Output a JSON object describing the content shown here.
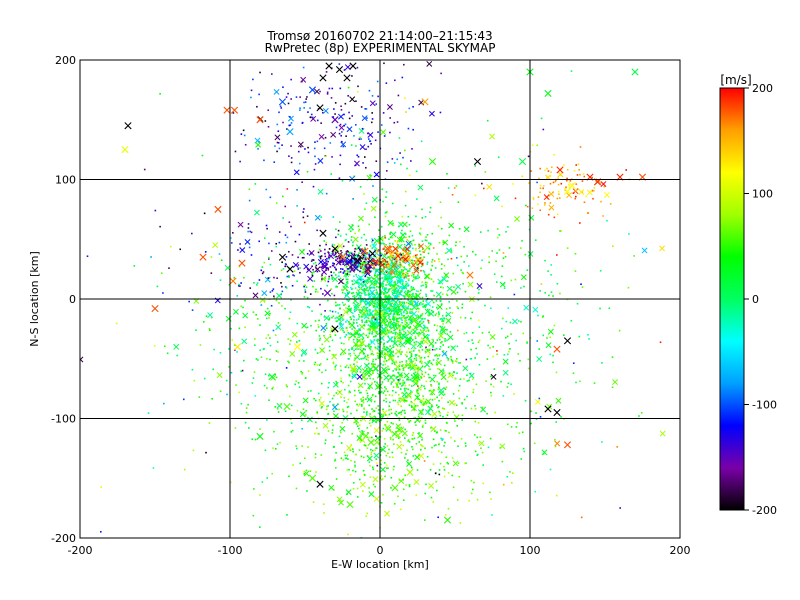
{
  "chart_data": {
    "type": "scatter",
    "title": "Tromsø 20160702 21:14:00–21:15:43",
    "subtitle": "RwPretec (8p) EXPERIMENTAL SKYMAP",
    "xlabel": "E-W location [km]",
    "ylabel": "N-S location [km]",
    "xlim": [
      -200,
      200
    ],
    "ylim": [
      -200,
      200
    ],
    "xticks": [
      -200,
      -100,
      0,
      100,
      200
    ],
    "yticks": [
      -200,
      -100,
      0,
      100,
      200
    ],
    "grid": true,
    "colorbar": {
      "label": "[m/s]",
      "range": [
        -200,
        200
      ],
      "ticks": [
        200,
        100,
        0,
        -100,
        -200
      ],
      "colors": [
        "#000000",
        "#7a00a8",
        "#0000ff",
        "#00a0ff",
        "#00ffff",
        "#00ff60",
        "#00ff00",
        "#a0ff00",
        "#ffff00",
        "#ffa000",
        "#ff0000"
      ]
    },
    "x_markers": [
      {
        "x": -168,
        "y": 145,
        "v": -200
      },
      {
        "x": -170,
        "y": 125,
        "v": 110
      },
      {
        "x": -102,
        "y": 158,
        "v": 180
      },
      {
        "x": -97,
        "y": 158,
        "v": 180
      },
      {
        "x": -80,
        "y": 150,
        "v": 180
      },
      {
        "x": -65,
        "y": 165,
        "v": -100
      },
      {
        "x": -45,
        "y": 175,
        "v": -100
      },
      {
        "x": -38,
        "y": 185,
        "v": -200
      },
      {
        "x": -34,
        "y": 195,
        "v": -200
      },
      {
        "x": -27,
        "y": 192,
        "v": -200
      },
      {
        "x": -22,
        "y": 185,
        "v": -200
      },
      {
        "x": -18,
        "y": 195,
        "v": -200
      },
      {
        "x": -40,
        "y": 160,
        "v": -200
      },
      {
        "x": -30,
        "y": 150,
        "v": -150
      },
      {
        "x": -60,
        "y": 140,
        "v": -80
      },
      {
        "x": 30,
        "y": 165,
        "v": 160
      },
      {
        "x": 65,
        "y": 115,
        "v": -200
      },
      {
        "x": 35,
        "y": 115,
        "v": 50
      },
      {
        "x": 100,
        "y": 190,
        "v": 30
      },
      {
        "x": 112,
        "y": 172,
        "v": 30
      },
      {
        "x": 170,
        "y": 190,
        "v": 10
      },
      {
        "x": 95,
        "y": 115,
        "v": 10
      },
      {
        "x": 120,
        "y": 108,
        "v": 190
      },
      {
        "x": 140,
        "y": 102,
        "v": 190
      },
      {
        "x": 145,
        "y": 98,
        "v": 190
      },
      {
        "x": 160,
        "y": 102,
        "v": 190
      },
      {
        "x": 175,
        "y": 102,
        "v": 180
      },
      {
        "x": 128,
        "y": 95,
        "v": 120
      },
      {
        "x": 125,
        "y": 90,
        "v": 120
      },
      {
        "x": -108,
        "y": 75,
        "v": 180
      },
      {
        "x": -118,
        "y": 35,
        "v": 180
      },
      {
        "x": -92,
        "y": 30,
        "v": 180
      },
      {
        "x": -65,
        "y": 35,
        "v": -200
      },
      {
        "x": -38,
        "y": 55,
        "v": -200
      },
      {
        "x": -30,
        "y": 42,
        "v": -200
      },
      {
        "x": -10,
        "y": 40,
        "v": 170
      },
      {
        "x": -5,
        "y": 38,
        "v": -200
      },
      {
        "x": 5,
        "y": 42,
        "v": 180
      },
      {
        "x": 12,
        "y": 36,
        "v": 190
      },
      {
        "x": 18,
        "y": 38,
        "v": 160
      },
      {
        "x": -25,
        "y": 35,
        "v": 170
      },
      {
        "x": -15,
        "y": 32,
        "v": -200
      },
      {
        "x": -8,
        "y": 25,
        "v": -170
      },
      {
        "x": -150,
        "y": -8,
        "v": 180
      },
      {
        "x": -98,
        "y": 15,
        "v": 170
      },
      {
        "x": -60,
        "y": 25,
        "v": -200
      },
      {
        "x": -30,
        "y": -25,
        "v": -200
      },
      {
        "x": -35,
        "y": 5,
        "v": -150
      },
      {
        "x": 60,
        "y": 20,
        "v": 170
      },
      {
        "x": 125,
        "y": -35,
        "v": -200
      },
      {
        "x": 118,
        "y": -42,
        "v": 180
      },
      {
        "x": 112,
        "y": -92,
        "v": -200
      },
      {
        "x": 118,
        "y": -95,
        "v": -200
      },
      {
        "x": 125,
        "y": -122,
        "v": 180
      },
      {
        "x": -55,
        "y": -40,
        "v": 120
      },
      {
        "x": -62,
        "y": -90,
        "v": 60
      },
      {
        "x": -80,
        "y": -115,
        "v": 40
      },
      {
        "x": -72,
        "y": -65,
        "v": 20
      },
      {
        "x": -45,
        "y": -150,
        "v": 60
      },
      {
        "x": -40,
        "y": -155,
        "v": -200
      },
      {
        "x": -20,
        "y": -172,
        "v": 60
      },
      {
        "x": 10,
        "y": -158,
        "v": 60
      },
      {
        "x": 20,
        "y": -145,
        "v": 80
      },
      {
        "x": 45,
        "y": -185,
        "v": 50
      },
      {
        "x": -95,
        "y": -40,
        "v": 130
      },
      {
        "x": -6,
        "y": -120,
        "v": 60
      }
    ],
    "dot_clusters": [
      {
        "cx": 8,
        "cy": -25,
        "sx": 22,
        "sy": 45,
        "n": 1500,
        "vmin": -10,
        "vmax": 90
      },
      {
        "cx": 2,
        "cy": 5,
        "sx": 14,
        "sy": 20,
        "n": 700,
        "vmin": -60,
        "vmax": 40
      },
      {
        "cx": 10,
        "cy": -110,
        "sx": 38,
        "sy": 40,
        "n": 550,
        "vmin": 20,
        "vmax": 100
      },
      {
        "cx": -22,
        "cy": 32,
        "sx": 15,
        "sy": 6,
        "n": 220,
        "vmin": -200,
        "vmax": -120
      },
      {
        "cx": 10,
        "cy": 33,
        "sx": 12,
        "sy": 6,
        "n": 160,
        "vmin": 120,
        "vmax": 200
      },
      {
        "cx": -35,
        "cy": 145,
        "sx": 30,
        "sy": 25,
        "n": 230,
        "vmin": -200,
        "vmax": -80
      },
      {
        "cx": 125,
        "cy": 95,
        "sx": 15,
        "sy": 12,
        "n": 110,
        "vmin": 120,
        "vmax": 200
      },
      {
        "cx": -65,
        "cy": 30,
        "sx": 30,
        "sy": 25,
        "n": 120,
        "vmin": -200,
        "vmax": -60
      },
      {
        "cx": 60,
        "cy": -20,
        "sx": 45,
        "sy": 55,
        "n": 350,
        "vmin": -30,
        "vmax": 80
      },
      {
        "cx": -60,
        "cy": -40,
        "sx": 35,
        "sy": 50,
        "n": 250,
        "vmin": -20,
        "vmax": 80
      },
      {
        "cx": 0,
        "cy": 0,
        "sx": 110,
        "sy": 110,
        "n": 200,
        "vmin": -200,
        "vmax": 200
      }
    ]
  }
}
